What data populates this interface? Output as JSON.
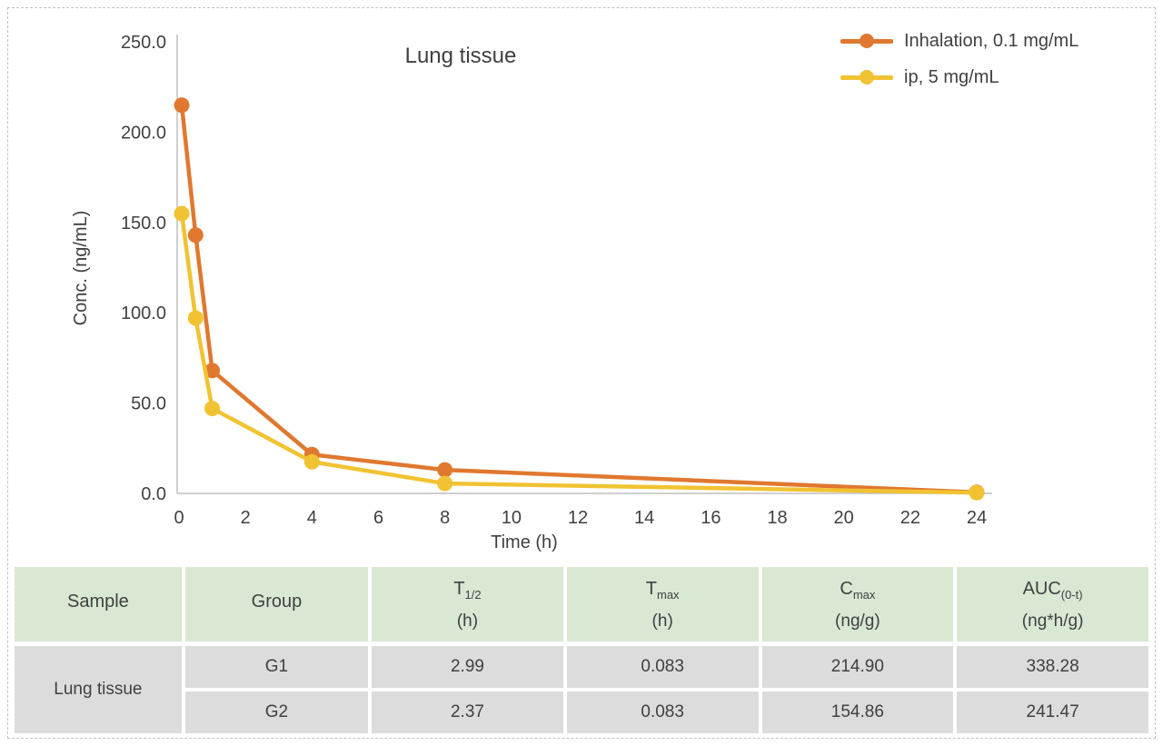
{
  "page": {
    "border_color": "#c2c2c2",
    "background": "#ffffff"
  },
  "chart_data": {
    "type": "line",
    "title": "Lung tissue",
    "xlabel": "Time (h)",
    "ylabel": "Conc. (ng/mL)",
    "xlim": [
      0,
      24
    ],
    "ylim": [
      0,
      250
    ],
    "x_ticks": [
      0,
      2,
      4,
      6,
      8,
      10,
      12,
      14,
      16,
      18,
      20,
      22,
      24
    ],
    "y_ticks": [
      0,
      50,
      100,
      150,
      200,
      250
    ],
    "y_tick_labels": [
      "0.0",
      "50.0",
      "100.0",
      "150.0",
      "200.0",
      "250.0"
    ],
    "grid": false,
    "legend_position": "top-right",
    "axis_color": "#BFBFBF",
    "text_color": "#404040",
    "series": [
      {
        "name": "Inhalation, 0.1 mg/mL",
        "color": "#E0782F",
        "x": [
          0.083,
          0.5,
          1,
          4,
          8,
          24
        ],
        "y": [
          214.9,
          143,
          68,
          21.5,
          13,
          0.6
        ]
      },
      {
        "name": "ip, 5 mg/mL",
        "color": "#F1C232",
        "x": [
          0.083,
          0.5,
          1,
          4,
          8,
          24
        ],
        "y": [
          154.86,
          97,
          47,
          17.5,
          5.5,
          0.4
        ]
      }
    ]
  },
  "table": {
    "header_bg": "#D9E8D3",
    "row_bg": "#DCDCDC",
    "headers": [
      {
        "base": "Sample",
        "sub": "",
        "unit": ""
      },
      {
        "base": "Group",
        "sub": "",
        "unit": ""
      },
      {
        "base": "T",
        "sub": "1/2",
        "unit": "(h)"
      },
      {
        "base": "T",
        "sub": "max",
        "unit": "(h)"
      },
      {
        "base": "C",
        "sub": "max",
        "unit": "(ng/g)"
      },
      {
        "base": "AUC",
        "sub": "(0-t)",
        "unit": "(ng*h/g)"
      }
    ],
    "sample_label": "Lung tissue",
    "rows": [
      {
        "group": "G1",
        "t_half": "2.99",
        "t_max": "0.083",
        "c_max": "214.90",
        "auc": "338.28"
      },
      {
        "group": "G2",
        "t_half": "2.37",
        "t_max": "0.083",
        "c_max": "154.86",
        "auc": "241.47"
      }
    ]
  }
}
